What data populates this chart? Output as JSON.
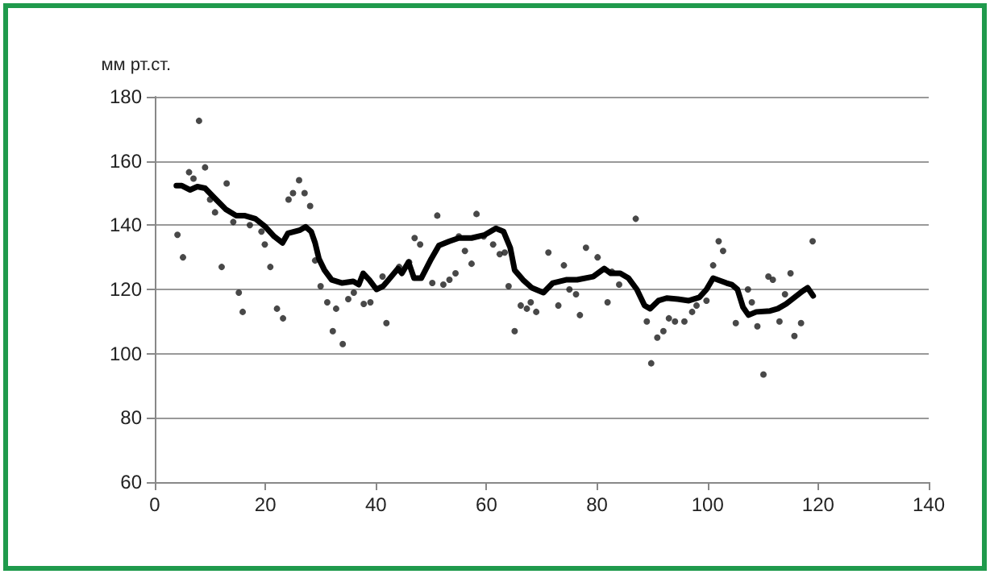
{
  "chart_data": {
    "type": "scatter",
    "ylabel": "мм рт.ст.",
    "xlim": [
      0,
      140
    ],
    "xticks": [
      0,
      20,
      40,
      60,
      80,
      100,
      120,
      140
    ],
    "ylim": [
      60,
      180
    ],
    "yticks": [
      60,
      80,
      100,
      120,
      140,
      160,
      180
    ],
    "grid": "y",
    "series": [
      {
        "color": "#1a1a1a",
        "marker": "circle",
        "x": [
          4.1,
          5.1,
          6.2,
          7,
          8,
          9.1,
          10,
          10.9,
          12.1,
          13,
          14.2,
          15.2,
          15.9,
          17.2,
          19.3,
          19.9,
          20.9,
          22.1,
          23.2,
          24.2,
          25,
          26.1,
          27.1,
          28.1,
          29,
          30,
          31.2,
          32.2,
          32.8,
          34,
          35,
          36,
          37.8,
          39,
          41.2,
          41.9,
          44.2,
          46,
          47,
          48,
          50.2,
          51.1,
          52.2,
          53.3,
          54.4,
          55,
          56.1,
          57.3,
          58.2,
          59.5,
          61.2,
          62.4,
          63.3,
          64,
          65.1,
          66.2,
          67.3,
          68,
          69,
          71.2,
          73,
          74,
          75,
          76.2,
          76.9,
          78,
          80.1,
          81.9,
          82.7,
          84,
          87,
          89,
          89.8,
          90.9,
          92,
          93,
          94.1,
          95.8,
          97.2,
          98,
          99.8,
          101,
          102,
          102.8,
          105.1,
          107.3,
          108,
          109,
          110.1,
          111,
          111.8,
          113,
          114,
          115,
          115.7,
          116.9,
          119
        ],
        "values": [
          137,
          130,
          156.5,
          154.5,
          172.5,
          158,
          148,
          144,
          127,
          153,
          141,
          119,
          113,
          140,
          138,
          134,
          127,
          114,
          111,
          148,
          150,
          154,
          150,
          146,
          129,
          121,
          116,
          107,
          114,
          103,
          117,
          119,
          115.5,
          116,
          124,
          109.5,
          127,
          128.5,
          136,
          134,
          122,
          143,
          121.5,
          123,
          125,
          136.5,
          132,
          128,
          143.5,
          136.5,
          134,
          131,
          131.5,
          121,
          107,
          115,
          114,
          116,
          113,
          131.5,
          115,
          127.5,
          120,
          118.5,
          112,
          133,
          130,
          116,
          125.5,
          121.5,
          142,
          110,
          97,
          105,
          107,
          111,
          110,
          110,
          113,
          115,
          116.5,
          127.5,
          135,
          132,
          109.5,
          120,
          116,
          108.5,
          93.5,
          124,
          123,
          110,
          118.5,
          125,
          105.5,
          109.5,
          135
        ]
      },
      {
        "type": "line",
        "color": "#000000",
        "marker": "none",
        "line_style": "solid",
        "x": [
          3.9,
          4.9,
          6.4,
          7.7,
          9.1,
          10.8,
          12.8,
          14.7,
          16.2,
          18.2,
          20,
          21.6,
          23.1,
          24.1,
          26.3,
          27.3,
          28.3,
          29,
          29.7,
          30.7,
          32,
          33.9,
          35.9,
          36.9,
          37.7,
          38.8,
          40.1,
          41.3,
          42.3,
          44,
          44.7,
          45.9,
          46.9,
          48.2,
          50,
          51.4,
          53.3,
          55,
          57.3,
          59.7,
          61.7,
          63.1,
          64.3,
          65.1,
          66.6,
          68.2,
          70.3,
          72,
          74.4,
          76.4,
          79.3,
          81.3,
          82.5,
          84.2,
          85.7,
          87.2,
          88.6,
          89.6,
          91.1,
          92.6,
          94.6,
          96.6,
          98.5,
          99.8,
          101,
          103.4,
          104.4,
          105.4,
          106.4,
          107.4,
          108.8,
          111.3,
          112.7,
          114.2,
          115.7,
          117.2,
          118.1,
          119.1
        ],
        "values": [
          152.3,
          152.3,
          151,
          152,
          151.5,
          148.5,
          145,
          143,
          143,
          142,
          139.5,
          136.5,
          134.5,
          137.5,
          138.5,
          139.5,
          138,
          134.5,
          129.5,
          126,
          123,
          122,
          122.5,
          121.5,
          125,
          123,
          120,
          121,
          123,
          126.5,
          125,
          128.5,
          123.5,
          123.5,
          129.5,
          133.7,
          135,
          136,
          136,
          137,
          139,
          138,
          133,
          126,
          123,
          120.5,
          119,
          122,
          123,
          123,
          124,
          126.5,
          125,
          125,
          123.5,
          120,
          115,
          114,
          116.5,
          117.3,
          117,
          116.5,
          117.5,
          120,
          123.5,
          122,
          121.5,
          120,
          114.5,
          112,
          113,
          113.3,
          114,
          115.5,
          117.5,
          119.5,
          120.5,
          118
        ]
      }
    ]
  }
}
